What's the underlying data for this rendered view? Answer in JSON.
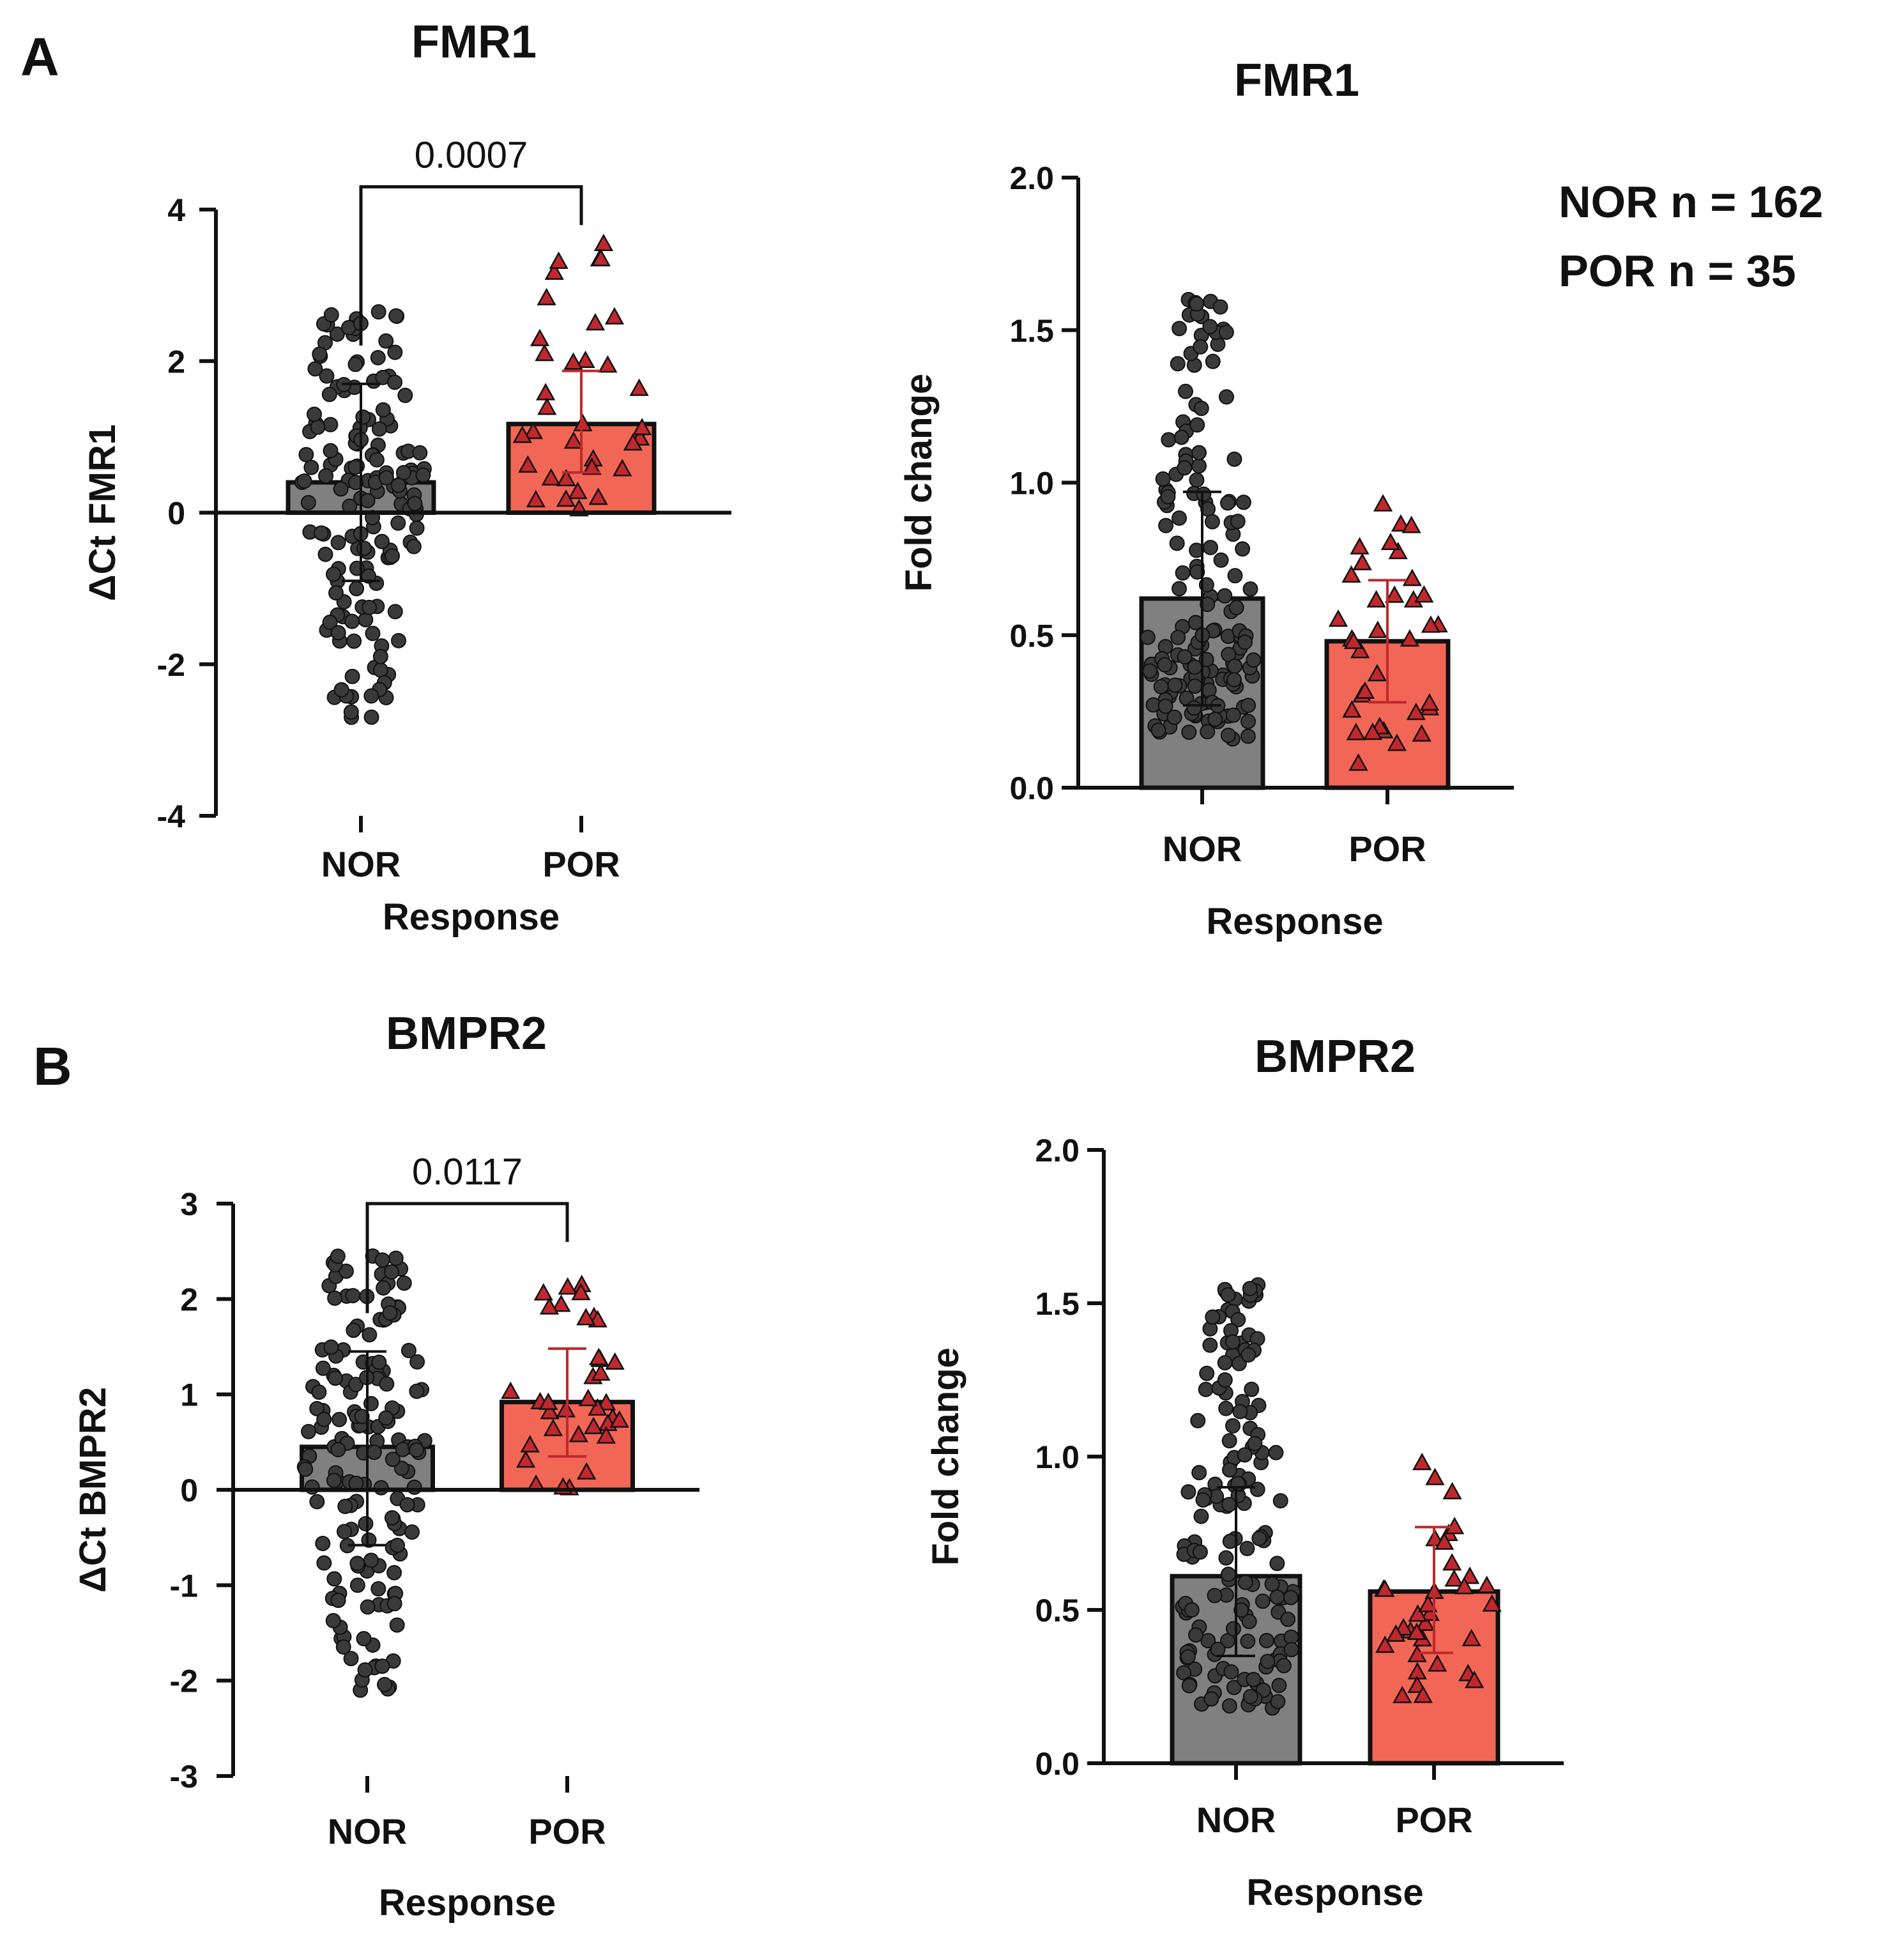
{
  "panel_labels": [
    "A",
    "B"
  ],
  "annotations": {
    "nor_n": "NOR n = 162",
    "por_n": "POR  n = 35"
  },
  "colors": {
    "nor_bar": "#808080",
    "por_bar": "#f26655",
    "nor_point": "#3a3a3a",
    "por_point": "#c0282d",
    "axis": "#111111"
  },
  "chart_data": [
    {
      "id": "A-dct",
      "type": "bar",
      "title": "FMR1",
      "xlabel": "Response",
      "ylabel": "ΔCt FMR1",
      "categories": [
        "NOR",
        "POR"
      ],
      "values": [
        0.4,
        1.17
      ],
      "error_low": [
        -0.9,
        0.53
      ],
      "error_high": [
        1.7,
        1.87
      ],
      "ylim": [
        -4,
        4
      ],
      "yticks": [
        -4,
        -2,
        0,
        2,
        4
      ],
      "ytick_labels": [
        "-4",
        "-2",
        "0",
        "2",
        "4"
      ],
      "significance": {
        "label": "0.0007",
        "y": 4.3
      },
      "points": {
        "NOR": {
          "n": 162,
          "min": -2.7,
          "max": 2.65,
          "center": 0.4
        },
        "POR": {
          "n": 35,
          "min": 0.05,
          "max": 3.55,
          "center": 1.17
        }
      }
    },
    {
      "id": "A-fold",
      "type": "bar",
      "title": "FMR1",
      "xlabel": "Response",
      "ylabel": "Fold change",
      "categories": [
        "NOR",
        "POR"
      ],
      "values": [
        0.62,
        0.48
      ],
      "error_low": [
        0.27,
        0.28
      ],
      "error_high": [
        0.97,
        0.68
      ],
      "ylim": [
        0,
        2
      ],
      "yticks": [
        0,
        0.5,
        1,
        1.5,
        2
      ],
      "ytick_labels": [
        "0.0",
        "0.5",
        "1.0",
        "1.5",
        "2.0"
      ],
      "points": {
        "NOR": {
          "n": 162,
          "min": 0.16,
          "max": 1.6,
          "center": 0.5
        },
        "POR": {
          "n": 35,
          "min": 0.08,
          "max": 0.93,
          "center": 0.45
        }
      }
    },
    {
      "id": "B-dct",
      "type": "bar",
      "title": "BMPR2",
      "xlabel": "Response",
      "ylabel": "ΔCt BMPR2",
      "categories": [
        "NOR",
        "POR"
      ],
      "values": [
        0.45,
        0.92
      ],
      "error_low": [
        -0.58,
        0.35
      ],
      "error_high": [
        1.45,
        1.48
      ],
      "ylim": [
        -3,
        3
      ],
      "yticks": [
        -3,
        -2,
        -1,
        0,
        1,
        2,
        3
      ],
      "ytick_labels": [
        "-3",
        "-2",
        "-1",
        "0",
        "1",
        "2",
        "3"
      ],
      "significance": {
        "label": "0.0117",
        "y": 3.0
      },
      "points": {
        "NOR": {
          "n": 162,
          "min": -2.1,
          "max": 2.45,
          "center": 0.45
        },
        "POR": {
          "n": 35,
          "min": 0.02,
          "max": 2.15,
          "center": 0.92
        }
      }
    },
    {
      "id": "B-fold",
      "type": "bar",
      "title": "BMPR2",
      "xlabel": "Response",
      "ylabel": "Fold change",
      "categories": [
        "NOR",
        "POR"
      ],
      "values": [
        0.61,
        0.56
      ],
      "error_low": [
        0.35,
        0.36
      ],
      "error_high": [
        0.9,
        0.77
      ],
      "ylim": [
        0,
        2
      ],
      "yticks": [
        0,
        0.5,
        1,
        1.5,
        2
      ],
      "ytick_labels": [
        "0.0",
        "0.5",
        "1.0",
        "1.5",
        "2.0"
      ],
      "points": {
        "NOR": {
          "n": 162,
          "min": 0.18,
          "max": 1.56,
          "center": 0.55
        },
        "POR": {
          "n": 35,
          "min": 0.22,
          "max": 0.98,
          "center": 0.52
        }
      }
    }
  ]
}
